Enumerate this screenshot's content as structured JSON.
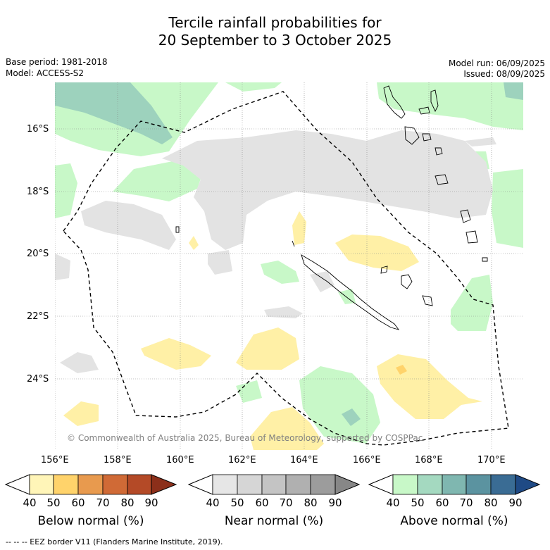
{
  "title_line1": "Tercile rainfall probabilities for",
  "title_line2": "20 September to 3 October 2025",
  "base_period": "Base period: 1981-2018",
  "model": "Model: ACCESS-S2",
  "model_run": "Model run: 06/09/2025",
  "issued": "Issued: 08/09/2025",
  "copyright": "© Commonwealth of Australia 2025, Bureau of Meteorology, supported by COSPPac",
  "lat_labels": [
    "16°S",
    "18°S",
    "20°S",
    "22°S",
    "24°S"
  ],
  "lon_labels": [
    "156°E",
    "158°E",
    "160°E",
    "162°E",
    "164°E",
    "166°E",
    "168°E",
    "170°E"
  ],
  "colorbars": [
    {
      "label": "Below normal (%)",
      "ticks": [
        "40",
        "50",
        "60",
        "70",
        "80",
        "90"
      ],
      "colors": [
        "#fff5b8",
        "#ffd36b",
        "#e89a4e",
        "#d06a36",
        "#b44a27",
        "#8c2f1a"
      ]
    },
    {
      "label": "Near normal (%)",
      "ticks": [
        "40",
        "50",
        "60",
        "70",
        "80",
        "90"
      ],
      "colors": [
        "#e6e6e6",
        "#d6d6d6",
        "#c4c4c4",
        "#b0b0b0",
        "#9c9c9c",
        "#878787"
      ]
    },
    {
      "label": "Above normal (%)",
      "ticks": [
        "40",
        "50",
        "60",
        "70",
        "80",
        "90"
      ],
      "colors": [
        "#c8f8c8",
        "#a4d9c0",
        "#7fb7b0",
        "#5b93a0",
        "#3a6c94",
        "#1f4a85"
      ]
    }
  ],
  "footer": "-- -- -- EEZ border V11 (Flanders Marine Institute, 2019).",
  "legend_colors": {
    "below_50": "#fff0a6",
    "near_40": "#e3e3e3",
    "above_40": "#c8f8c8",
    "above_50": "#9dd2bd"
  }
}
